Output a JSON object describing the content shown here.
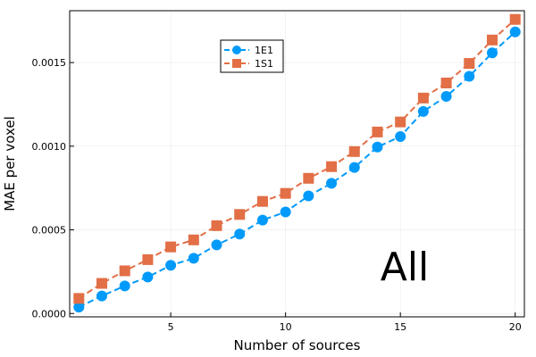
{
  "chart_data": {
    "type": "line",
    "title": "",
    "xlabel": "Number of sources",
    "ylabel": "MAE per voxel",
    "annotation": "All",
    "xlim": [
      0.6,
      20.4
    ],
    "ylim": [
      -2e-05,
      0.00181
    ],
    "x_ticks": [
      5,
      10,
      15,
      20
    ],
    "x_tick_labels": [
      "5",
      "10",
      "15",
      "20"
    ],
    "y_ticks": [
      0,
      0.0005,
      0.001,
      0.0015
    ],
    "y_tick_labels": [
      "0.0000",
      "0.0005",
      "0.0010",
      "0.0015"
    ],
    "grid": true,
    "legend_position": "top-center",
    "x": [
      1,
      2,
      3,
      4,
      5,
      6,
      7,
      8,
      9,
      10,
      11,
      12,
      13,
      14,
      15,
      16,
      17,
      18,
      19,
      20
    ],
    "series": [
      {
        "name": "1E1",
        "color": "#009AFA",
        "marker": "circle",
        "values": [
          3.8e-05,
          0.000105,
          0.000165,
          0.000218,
          0.000288,
          0.00033,
          0.00041,
          0.000475,
          0.000558,
          0.000607,
          0.000703,
          0.000778,
          0.000873,
          0.000995,
          0.001058,
          0.001208,
          0.001298,
          0.001418,
          0.001558,
          0.001683
        ]
      },
      {
        "name": "1S1",
        "color": "#E26F46",
        "marker": "square",
        "values": [
          9e-05,
          0.00018,
          0.000255,
          0.000322,
          0.000398,
          0.00044,
          0.000525,
          0.000592,
          0.00067,
          0.000718,
          0.000808,
          0.000878,
          0.000968,
          0.001085,
          0.001145,
          0.001288,
          0.001378,
          0.001495,
          0.001635,
          0.001758
        ]
      }
    ]
  }
}
